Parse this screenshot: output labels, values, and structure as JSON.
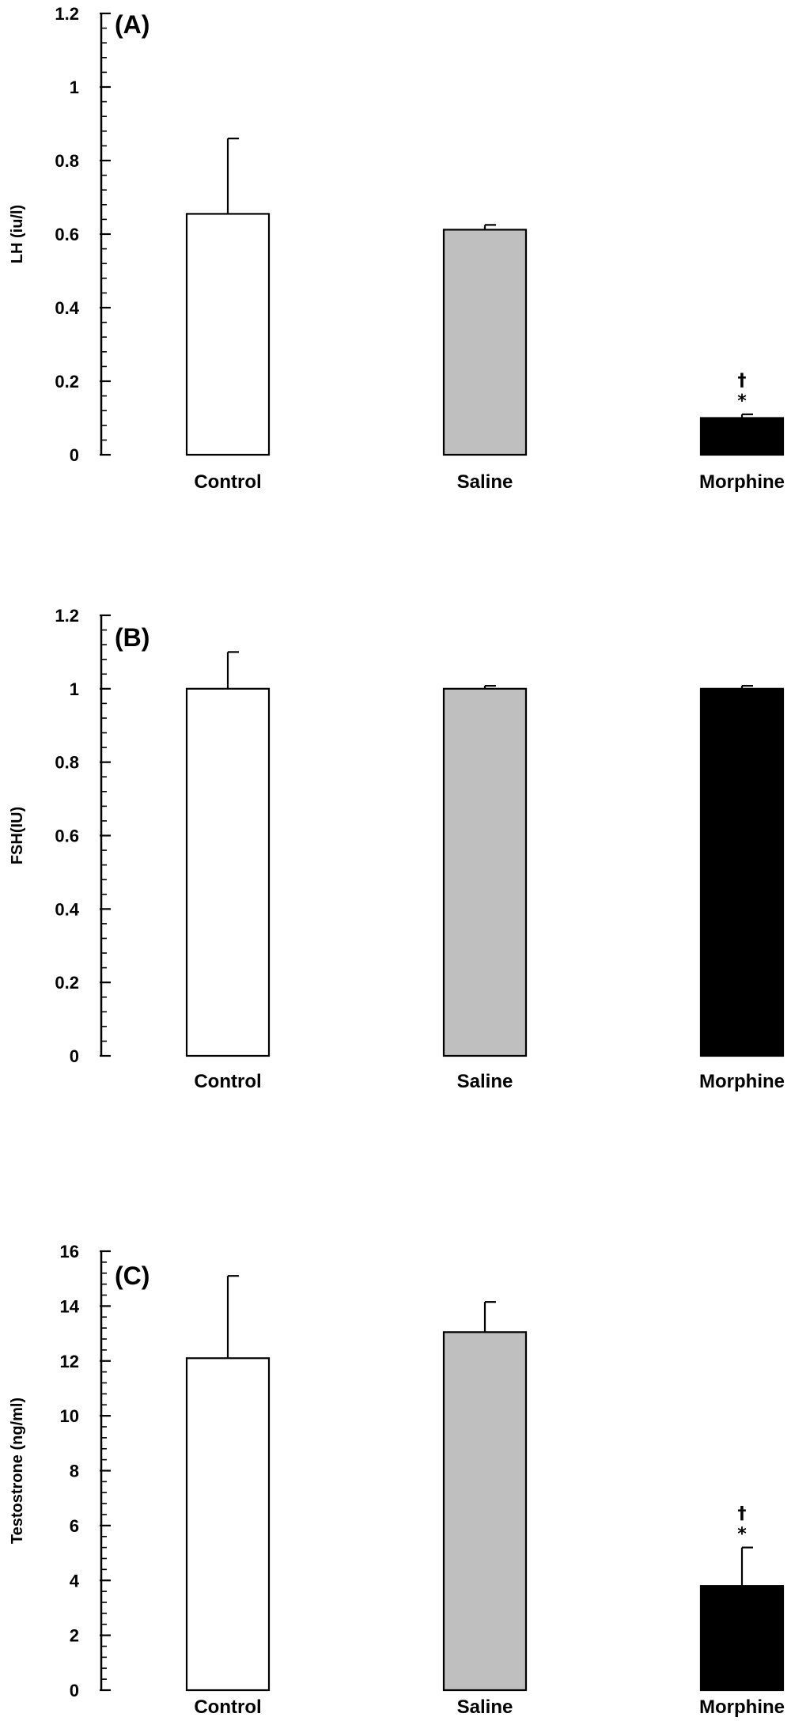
{
  "chart_data": [
    {
      "type": "bar",
      "panel_label": "(A)",
      "ylabel": "LH (iu/l)",
      "categories": [
        "Control",
        "Saline",
        "Morphine"
      ],
      "values": [
        0.655,
        0.612,
        0.1
      ],
      "errors": [
        0.205,
        0.013,
        0.01
      ],
      "colors": [
        "#ffffff",
        "#bfbfbf",
        "#000000"
      ],
      "significance": [
        "",
        "",
        "†\n*"
      ],
      "ylim": [
        0,
        1.2
      ],
      "yticks": [
        "0",
        "0.2",
        "0.4",
        "0.6",
        "0.8",
        "1",
        "1.2"
      ],
      "ytick_values": [
        0,
        0.2,
        0.4,
        0.6,
        0.8,
        1.0,
        1.2
      ],
      "grid": false
    },
    {
      "type": "bar",
      "panel_label": "(B)",
      "ylabel": "FSH(IU)",
      "categories": [
        "Control",
        "Saline",
        "Morphine"
      ],
      "values": [
        1.0,
        1.0,
        1.0
      ],
      "errors": [
        0.1,
        0.008,
        0.008
      ],
      "colors": [
        "#ffffff",
        "#bfbfbf",
        "#000000"
      ],
      "significance": [
        "",
        "",
        ""
      ],
      "ylim": [
        0,
        1.2
      ],
      "yticks": [
        "0",
        "0.2",
        "0.4",
        "0.6",
        "0.8",
        "1",
        "1.2"
      ],
      "ytick_values": [
        0,
        0.2,
        0.4,
        0.6,
        0.8,
        1.0,
        1.2
      ],
      "grid": false
    },
    {
      "type": "bar",
      "panel_label": "(C)",
      "ylabel": "Testostrone (ng/ml)",
      "categories": [
        "Control",
        "Saline",
        "Morphine"
      ],
      "values": [
        12.1,
        13.05,
        3.8
      ],
      "errors": [
        3.0,
        1.1,
        1.4
      ],
      "colors": [
        "#ffffff",
        "#bfbfbf",
        "#000000"
      ],
      "significance": [
        "",
        "",
        "†\n*"
      ],
      "ylim": [
        0,
        16
      ],
      "yticks": [
        "0",
        "2",
        "4",
        "6",
        "8",
        "10",
        "12",
        "14",
        "16"
      ],
      "ytick_values": [
        0,
        2,
        4,
        6,
        8,
        10,
        12,
        14,
        16
      ],
      "grid": false
    }
  ]
}
